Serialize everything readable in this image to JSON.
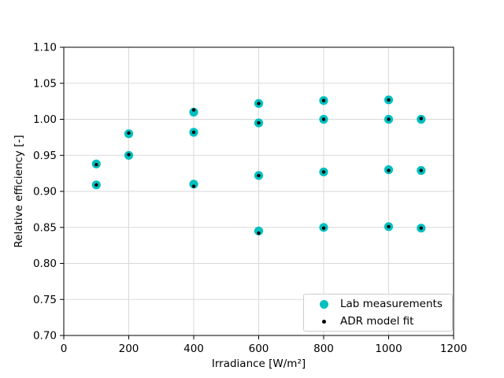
{
  "figure": {
    "background": "#ffffff"
  },
  "chart_data": {
    "type": "scatter",
    "title": "",
    "xlabel": "Irradiance [W/m²]",
    "ylabel": "Relative efficiency [-]",
    "xlim": [
      0,
      1200
    ],
    "ylim": [
      0.7,
      1.1
    ],
    "grid": true,
    "grid_color": "#d9d9d9",
    "axis_color": "#000000",
    "legend": {
      "position": "lower right"
    },
    "xticks": {
      "values": [
        0,
        200,
        400,
        600,
        800,
        1000,
        1200
      ],
      "labels": [
        "0",
        "200",
        "400",
        "600",
        "800",
        "1000",
        "1200"
      ]
    },
    "yticks": {
      "values": [
        0.7,
        0.75,
        0.8,
        0.85,
        0.9,
        0.95,
        1.0,
        1.05,
        1.1
      ],
      "labels": [
        "0.70",
        "0.75",
        "0.80",
        "0.85",
        "0.90",
        "0.95",
        "1.00",
        "1.05",
        "1.10"
      ]
    },
    "series": [
      {
        "name": "Lab measurements",
        "marker": "circle",
        "color": "#00bfbf",
        "marker_px": 11.2,
        "points": [
          [
            100,
            0.938
          ],
          [
            200,
            0.98
          ],
          [
            400,
            1.01
          ],
          [
            600,
            1.022
          ],
          [
            800,
            1.026
          ],
          [
            1000,
            1.027
          ],
          [
            100,
            0.909
          ],
          [
            200,
            0.95
          ],
          [
            400,
            0.982
          ],
          [
            600,
            0.995
          ],
          [
            800,
            1.0
          ],
          [
            1000,
            1.0
          ],
          [
            1100,
            1.0
          ],
          [
            400,
            0.91
          ],
          [
            600,
            0.922
          ],
          [
            800,
            0.927
          ],
          [
            1000,
            0.93
          ],
          [
            1100,
            0.929
          ],
          [
            600,
            0.845
          ],
          [
            800,
            0.85
          ],
          [
            1000,
            0.851
          ],
          [
            1100,
            0.849
          ]
        ]
      },
      {
        "name": "ADR model fit",
        "marker": "point",
        "color": "#000000",
        "marker_px": 4.4,
        "points": [
          [
            100,
            0.937
          ],
          [
            200,
            0.981
          ],
          [
            400,
            1.013
          ],
          [
            600,
            1.022
          ],
          [
            800,
            1.026
          ],
          [
            1000,
            1.027
          ],
          [
            100,
            0.909
          ],
          [
            200,
            0.951
          ],
          [
            400,
            0.982
          ],
          [
            600,
            0.995
          ],
          [
            800,
            1.0
          ],
          [
            1000,
            1.0
          ],
          [
            1100,
            1.001
          ],
          [
            400,
            0.907
          ],
          [
            600,
            0.922
          ],
          [
            800,
            0.927
          ],
          [
            1000,
            0.929
          ],
          [
            1100,
            0.929
          ],
          [
            600,
            0.842
          ],
          [
            800,
            0.849
          ],
          [
            1000,
            0.851
          ],
          [
            1100,
            0.849
          ]
        ]
      }
    ]
  }
}
